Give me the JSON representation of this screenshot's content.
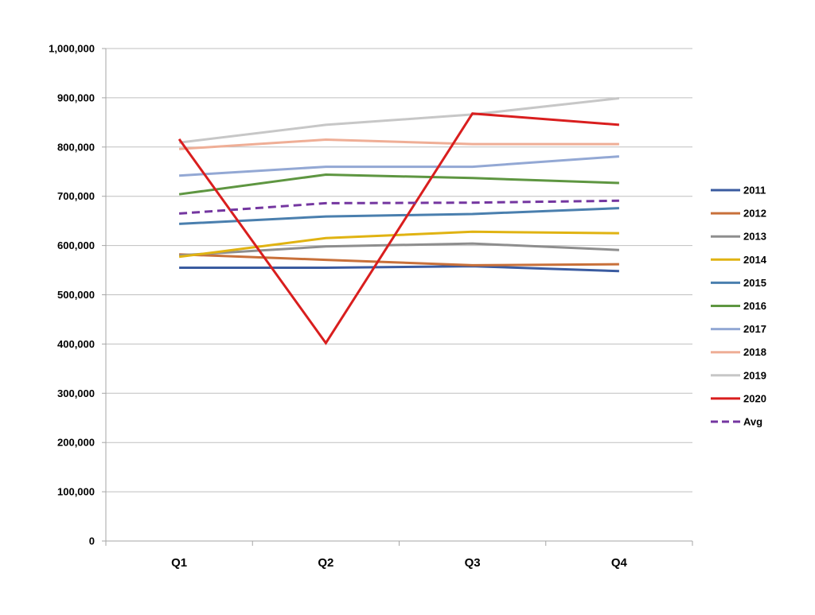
{
  "chart_data": {
    "type": "line",
    "categories": [
      "Q1",
      "Q2",
      "Q3",
      "Q4"
    ],
    "ylim": [
      0,
      1000000
    ],
    "yticks": [
      0,
      100000,
      200000,
      300000,
      400000,
      500000,
      600000,
      700000,
      800000,
      900000,
      1000000
    ],
    "ytick_labels": [
      "0",
      "100,000",
      "200,000",
      "300,000",
      "400,000",
      "500,000",
      "600,000",
      "700,000",
      "800,000",
      "900,000",
      "1,000,000"
    ],
    "grid": true,
    "legend_position": "right",
    "series": [
      {
        "name": "2011",
        "color": "#3A5BA0",
        "dashed": false,
        "values": [
          555000,
          555000,
          558000,
          548000
        ]
      },
      {
        "name": "2012",
        "color": "#C8703A",
        "dashed": false,
        "values": [
          582000,
          571000,
          560000,
          562000
        ]
      },
      {
        "name": "2013",
        "color": "#8E8E8E",
        "dashed": false,
        "values": [
          580000,
          598000,
          604000,
          591000
        ]
      },
      {
        "name": "2014",
        "color": "#E0B312",
        "dashed": false,
        "values": [
          577000,
          615000,
          628000,
          625000
        ]
      },
      {
        "name": "2015",
        "color": "#4A7FAE",
        "dashed": false,
        "values": [
          644000,
          659000,
          664000,
          676000
        ]
      },
      {
        "name": "2016",
        "color": "#5E9641",
        "dashed": false,
        "values": [
          704000,
          744000,
          737000,
          727000
        ]
      },
      {
        "name": "2017",
        "color": "#93A8D4",
        "dashed": false,
        "values": [
          742000,
          760000,
          760000,
          781000
        ]
      },
      {
        "name": "2018",
        "color": "#EFAE96",
        "dashed": false,
        "values": [
          796000,
          815000,
          806000,
          806000
        ]
      },
      {
        "name": "2019",
        "color": "#C7C7C7",
        "dashed": false,
        "values": [
          809000,
          845000,
          866000,
          899000
        ]
      },
      {
        "name": "2020",
        "color": "#D91E1E",
        "dashed": false,
        "values": [
          816000,
          402000,
          868000,
          845000
        ]
      },
      {
        "name": "Avg",
        "color": "#7436A0",
        "dashed": true,
        "values": [
          665000,
          686000,
          687000,
          691000
        ]
      }
    ]
  }
}
